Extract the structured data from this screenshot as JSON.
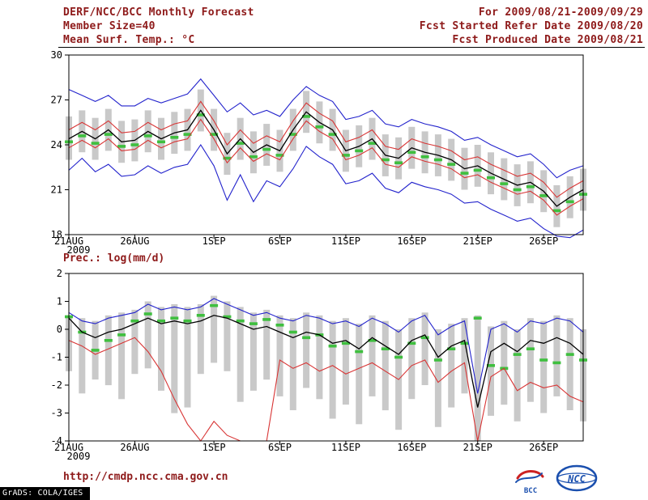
{
  "header": {
    "title": "DERF/NCC/BCC Monthly Forecast",
    "member_size": "Member Size=40",
    "for_range": "For 2009/08/21-2009/09/29",
    "refer_date": "Fcst Started Refer Date 2009/08/20",
    "produced_date": "Fcst Produced Date 2009/08/21"
  },
  "footer": {
    "url": "http://cmdp.ncc.cma.gov.cn",
    "grads_credit": "GrADS: COLA/IGES",
    "logos": [
      {
        "name": "bcc-logo",
        "text": "BCC"
      },
      {
        "name": "ncc-logo",
        "text": "NCC"
      }
    ]
  },
  "colors": {
    "accent_text": "#8e1a1a",
    "line_blue": "#2222cc",
    "line_red": "#d83434",
    "line_black": "#000000",
    "marker_green": "#3fbf3f",
    "bar_gray": "#c9c9c9",
    "frame": "#000000",
    "logo_blue": "#1a4fae",
    "logo_red": "#cc2222"
  },
  "chart_data": [
    {
      "type": "line",
      "label": "Mean Surf. Temp.: °C",
      "ylim": [
        18,
        30
      ],
      "yticks": [
        30,
        27,
        24,
        21,
        18
      ],
      "grid": false,
      "x_year_label": "2009",
      "x_tick_labels": [
        "21AUG",
        "26AUG",
        "1SEP",
        "6SEP",
        "11SEP",
        "16SEP",
        "21SEP",
        "26SEP"
      ],
      "x_tick_indices": [
        0,
        5,
        11,
        16,
        21,
        26,
        31,
        36
      ],
      "x_dates": [
        "21AUG",
        "22AUG",
        "23AUG",
        "24AUG",
        "25AUG",
        "26AUG",
        "27AUG",
        "28AUG",
        "29AUG",
        "30AUG",
        "31AUG",
        "1SEP",
        "2SEP",
        "3SEP",
        "4SEP",
        "5SEP",
        "6SEP",
        "7SEP",
        "8SEP",
        "9SEP",
        "10SEP",
        "11SEP",
        "12SEP",
        "13SEP",
        "14SEP",
        "15SEP",
        "16SEP",
        "17SEP",
        "18SEP",
        "19SEP",
        "20SEP",
        "21SEP",
        "22SEP",
        "23SEP",
        "24SEP",
        "25SEP",
        "26SEP",
        "27SEP",
        "28SEP",
        "29SEP"
      ],
      "series": [
        {
          "name": "ensemble-max",
          "color": "blue",
          "values": [
            27.7,
            27.3,
            26.9,
            27.3,
            26.6,
            26.6,
            27.1,
            26.8,
            27.1,
            27.4,
            28.4,
            27.3,
            26.2,
            26.8,
            26.0,
            26.3,
            25.9,
            27.0,
            27.9,
            27.3,
            26.9,
            25.7,
            25.9,
            26.3,
            25.4,
            25.2,
            25.7,
            25.4,
            25.2,
            24.9,
            24.3,
            24.5,
            24.0,
            23.6,
            23.2,
            23.4,
            22.7,
            21.8,
            22.3,
            22.6
          ]
        },
        {
          "name": "upper-quartile",
          "color": "red",
          "values": [
            25.0,
            25.5,
            25.0,
            25.6,
            24.8,
            24.9,
            25.5,
            25.0,
            25.4,
            25.6,
            26.9,
            25.6,
            24.0,
            25.0,
            24.1,
            24.6,
            24.2,
            25.6,
            26.8,
            26.1,
            25.6,
            24.2,
            24.5,
            25.0,
            23.9,
            23.7,
            24.4,
            24.1,
            23.9,
            23.6,
            23.0,
            23.2,
            22.7,
            22.3,
            21.9,
            22.1,
            21.5,
            20.5,
            21.1,
            21.6
          ]
        },
        {
          "name": "ensemble-mean",
          "color": "black",
          "values": [
            24.4,
            24.9,
            24.4,
            25.0,
            24.2,
            24.3,
            24.9,
            24.4,
            24.8,
            25.0,
            26.3,
            25.0,
            23.4,
            24.4,
            23.5,
            24.0,
            23.6,
            25.0,
            26.2,
            25.5,
            25.0,
            23.6,
            23.9,
            24.4,
            23.3,
            23.1,
            23.8,
            23.5,
            23.3,
            23.0,
            22.4,
            22.6,
            22.1,
            21.7,
            21.3,
            21.5,
            20.9,
            19.9,
            20.5,
            21.0
          ]
        },
        {
          "name": "lower-quartile",
          "color": "red",
          "values": [
            23.8,
            24.3,
            23.8,
            24.4,
            23.6,
            23.7,
            24.3,
            23.8,
            24.2,
            24.4,
            25.7,
            24.4,
            22.8,
            23.8,
            22.9,
            23.4,
            23.0,
            24.4,
            25.6,
            24.9,
            24.4,
            23.0,
            23.3,
            23.8,
            22.7,
            22.5,
            23.2,
            22.9,
            22.7,
            22.4,
            21.8,
            22.0,
            21.5,
            21.1,
            20.7,
            20.9,
            20.3,
            19.3,
            19.9,
            20.4
          ]
        },
        {
          "name": "ensemble-min",
          "color": "blue",
          "values": [
            22.3,
            23.1,
            22.2,
            22.7,
            21.9,
            22.0,
            22.6,
            22.1,
            22.5,
            22.7,
            24.0,
            22.6,
            20.3,
            22.0,
            20.2,
            21.6,
            21.2,
            22.4,
            23.9,
            23.2,
            22.7,
            21.4,
            21.6,
            22.1,
            21.1,
            20.8,
            21.5,
            21.2,
            21.0,
            20.7,
            20.1,
            20.2,
            19.7,
            19.3,
            18.9,
            19.1,
            18.4,
            17.9,
            17.8,
            18.3
          ]
        }
      ],
      "bars": {
        "name": "ensemble-spread",
        "color": "gray",
        "top": [
          25.9,
          26.3,
          25.8,
          26.4,
          25.6,
          25.7,
          26.3,
          25.8,
          26.2,
          26.4,
          27.7,
          26.4,
          24.8,
          25.8,
          24.9,
          25.4,
          25.0,
          26.4,
          27.6,
          26.9,
          26.4,
          25.0,
          25.3,
          25.8,
          24.7,
          24.5,
          25.2,
          24.9,
          24.7,
          24.4,
          23.8,
          24.0,
          23.5,
          23.1,
          22.7,
          22.9,
          22.3,
          21.3,
          21.9,
          22.4
        ],
        "bottom": [
          23.0,
          23.5,
          23.0,
          23.6,
          22.8,
          22.9,
          23.5,
          23.0,
          23.4,
          23.6,
          24.9,
          23.6,
          22.0,
          23.0,
          22.1,
          22.6,
          22.2,
          23.6,
          24.8,
          24.1,
          23.6,
          22.2,
          22.5,
          23.0,
          21.9,
          21.7,
          22.4,
          22.1,
          21.9,
          21.6,
          21.0,
          21.2,
          20.7,
          20.3,
          19.9,
          20.1,
          19.5,
          18.5,
          19.1,
          19.6
        ]
      },
      "markers": {
        "name": "observation-dashes",
        "color": "green",
        "values": [
          24.2,
          24.6,
          24.1,
          24.7,
          23.9,
          24.0,
          24.6,
          24.2,
          24.5,
          24.7,
          26.0,
          24.7,
          23.1,
          24.1,
          23.2,
          23.7,
          23.3,
          24.7,
          25.9,
          25.2,
          24.7,
          23.3,
          23.6,
          24.1,
          23.0,
          22.8,
          23.5,
          23.2,
          23.0,
          22.7,
          22.1,
          22.3,
          21.8,
          21.4,
          21.0,
          21.2,
          20.6,
          19.6,
          20.2,
          20.7
        ]
      }
    },
    {
      "type": "line",
      "label": "Prec.: log(mm/d)",
      "ylim": [
        -4,
        2
      ],
      "yticks": [
        2,
        1,
        0,
        -1,
        -2,
        -3,
        -4
      ],
      "grid": false,
      "x_year_label": "2009",
      "x_tick_labels": [
        "21AUG",
        "26AUG",
        "1SEP",
        "6SEP",
        "11SEP",
        "16SEP",
        "21SEP",
        "26SEP"
      ],
      "x_tick_indices": [
        0,
        5,
        11,
        16,
        21,
        26,
        31,
        36
      ],
      "x_dates": [
        "21AUG",
        "22AUG",
        "23AUG",
        "24AUG",
        "25AUG",
        "26AUG",
        "27AUG",
        "28AUG",
        "29AUG",
        "30AUG",
        "31AUG",
        "1SEP",
        "2SEP",
        "3SEP",
        "4SEP",
        "5SEP",
        "6SEP",
        "7SEP",
        "8SEP",
        "9SEP",
        "10SEP",
        "11SEP",
        "12SEP",
        "13SEP",
        "14SEP",
        "15SEP",
        "16SEP",
        "17SEP",
        "18SEP",
        "19SEP",
        "20SEP",
        "21SEP",
        "22SEP",
        "23SEP",
        "24SEP",
        "25SEP",
        "26SEP",
        "27SEP",
        "28SEP",
        "29SEP"
      ],
      "series": [
        {
          "name": "upper-envelope",
          "color": "blue",
          "values": [
            0.6,
            0.3,
            0.2,
            0.4,
            0.5,
            0.6,
            0.9,
            0.7,
            0.8,
            0.7,
            0.8,
            1.1,
            0.9,
            0.7,
            0.5,
            0.6,
            0.4,
            0.3,
            0.5,
            0.4,
            0.2,
            0.3,
            0.1,
            0.4,
            0.2,
            -0.1,
            0.3,
            0.5,
            -0.2,
            0.1,
            0.3,
            -2.3,
            0.0,
            0.2,
            -0.1,
            0.3,
            0.2,
            0.4,
            0.3,
            -0.1
          ]
        },
        {
          "name": "ensemble-mean",
          "color": "black",
          "values": [
            0.4,
            -0.1,
            -0.3,
            -0.1,
            0.0,
            0.2,
            0.4,
            0.2,
            0.3,
            0.2,
            0.3,
            0.5,
            0.4,
            0.2,
            0.0,
            0.1,
            -0.1,
            -0.3,
            -0.1,
            -0.2,
            -0.5,
            -0.4,
            -0.7,
            -0.3,
            -0.6,
            -0.9,
            -0.4,
            -0.2,
            -1.0,
            -0.6,
            -0.4,
            -2.8,
            -0.8,
            -0.5,
            -0.8,
            -0.4,
            -0.5,
            -0.3,
            -0.5,
            -0.9
          ]
        },
        {
          "name": "lower-envelope",
          "color": "red",
          "values": [
            -0.4,
            -0.6,
            -0.9,
            -0.7,
            -0.5,
            -0.3,
            -0.8,
            -1.5,
            -2.5,
            -3.4,
            -4.0,
            -3.3,
            -3.8,
            -4.0,
            -4.0,
            -4.0,
            -1.1,
            -1.4,
            -1.2,
            -1.5,
            -1.3,
            -1.6,
            -1.4,
            -1.2,
            -1.5,
            -1.8,
            -1.3,
            -1.1,
            -1.9,
            -1.5,
            -1.2,
            -4.0,
            -1.7,
            -1.4,
            -2.2,
            -1.9,
            -2.1,
            -2.0,
            -2.4,
            -2.6
          ]
        }
      ],
      "bars": {
        "name": "ensemble-spread",
        "color": "gray",
        "top": [
          0.5,
          0.4,
          0.3,
          0.5,
          0.6,
          0.7,
          1.0,
          0.8,
          0.9,
          0.8,
          0.9,
          1.2,
          1.0,
          0.8,
          0.6,
          0.7,
          0.5,
          0.4,
          0.6,
          0.5,
          0.3,
          0.4,
          0.2,
          0.5,
          0.3,
          0.0,
          0.4,
          0.6,
          0.0,
          0.2,
          0.4,
          0.5,
          0.1,
          0.3,
          0.0,
          0.4,
          0.3,
          0.5,
          0.4,
          0.0
        ],
        "bottom": [
          -1.5,
          -2.3,
          -1.8,
          -2.0,
          -2.5,
          -1.6,
          -1.4,
          -2.2,
          -3.0,
          -2.8,
          -1.6,
          -1.2,
          -1.5,
          -2.6,
          -2.2,
          -1.8,
          -2.4,
          -2.9,
          -2.1,
          -2.5,
          -3.2,
          -2.7,
          -3.4,
          -2.4,
          -2.9,
          -3.6,
          -2.5,
          -2.0,
          -3.5,
          -2.8,
          -2.3,
          -4.0,
          -3.1,
          -2.7,
          -3.3,
          -2.6,
          -3.0,
          -2.4,
          -2.9,
          -3.3
        ]
      },
      "markers": {
        "name": "observation-dashes",
        "color": "green",
        "values": [
          0.45,
          -0.1,
          -0.75,
          -0.4,
          -0.2,
          0.3,
          0.55,
          0.3,
          0.4,
          0.3,
          0.5,
          0.85,
          0.45,
          0.3,
          0.2,
          0.35,
          0.15,
          -0.1,
          -0.3,
          -0.2,
          -0.6,
          -0.5,
          -0.8,
          -0.4,
          -0.7,
          -1.0,
          -0.5,
          -0.3,
          -1.1,
          -0.7,
          -0.5,
          0.4,
          -1.3,
          -1.4,
          -0.9,
          -0.7,
          -1.1,
          -1.2,
          -0.9,
          -1.1
        ]
      }
    }
  ]
}
